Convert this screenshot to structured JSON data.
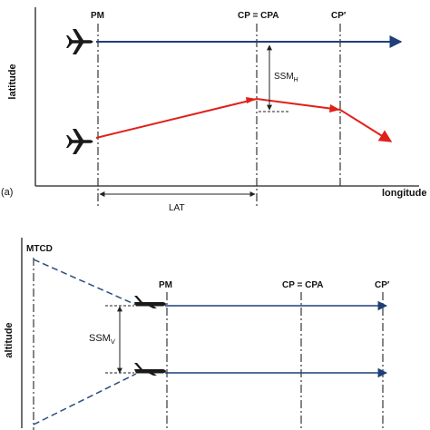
{
  "top_panel": {
    "panel_label": "(a)",
    "y_axis_label": "latitude",
    "x_axis_label": "longitude",
    "markers": {
      "pm": "PM",
      "cp_cpa": "CP = CPA",
      "cp_prime": "CP′"
    },
    "ssm_h": {
      "main": "SSM",
      "sub": "H"
    },
    "lat_label": "LAT",
    "icons": [
      "airplane-icon",
      "airplane-icon"
    ]
  },
  "bottom_panel": {
    "y_axis_label": "altitude",
    "markers": {
      "mtcd": "MTCD",
      "pm": "PM",
      "cp_cpa": "CP = CPA",
      "cp_prime": "CP′"
    },
    "ssm_v": {
      "main": "SSM",
      "sub": "V"
    },
    "icons": [
      "airplane-side-icon",
      "airplane-side-icon"
    ]
  },
  "colors": {
    "blue_track": "#1f3f7a",
    "red_track": "#e0201a",
    "axis": "#222222",
    "dashed_line": "#2b4d80"
  }
}
